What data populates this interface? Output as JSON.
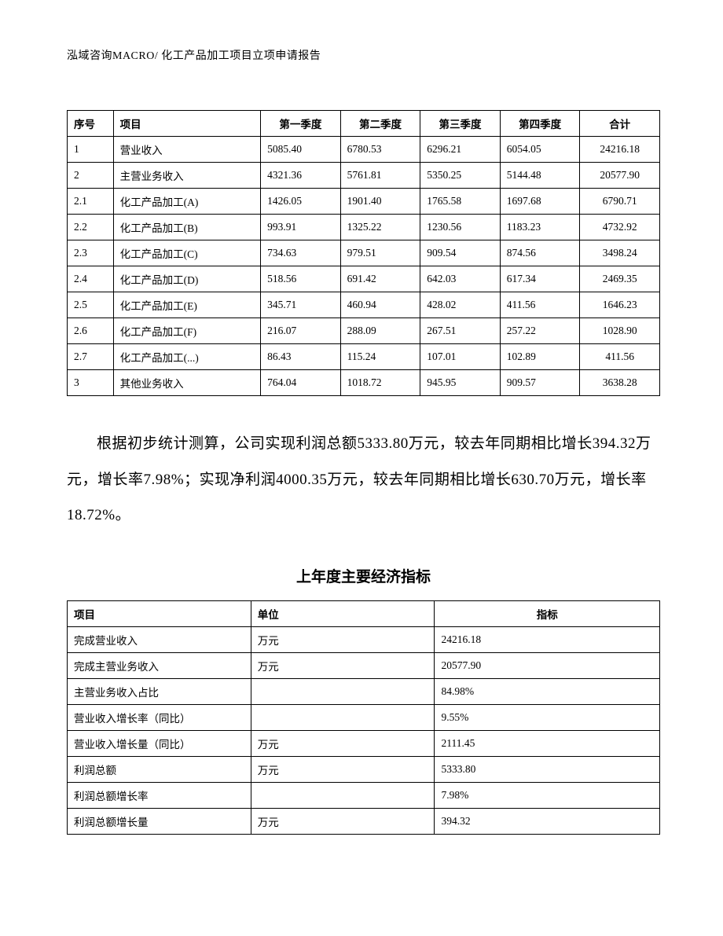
{
  "header": "泓域咨询MACRO/    化工产品加工项目立项申请报告",
  "table1": {
    "headers": [
      "序号",
      "项目",
      "第一季度",
      "第二季度",
      "第三季度",
      "第四季度",
      "合计"
    ],
    "rows": [
      [
        "1",
        "营业收入",
        "5085.40",
        "6780.53",
        "6296.21",
        "6054.05",
        "24216.18"
      ],
      [
        "2",
        "主营业务收入",
        "4321.36",
        "5761.81",
        "5350.25",
        "5144.48",
        "20577.90"
      ],
      [
        "2.1",
        "化工产品加工(A)",
        "1426.05",
        "1901.40",
        "1765.58",
        "1697.68",
        "6790.71"
      ],
      [
        "2.2",
        "化工产品加工(B)",
        "993.91",
        "1325.22",
        "1230.56",
        "1183.23",
        "4732.92"
      ],
      [
        "2.3",
        "化工产品加工(C)",
        "734.63",
        "979.51",
        "909.54",
        "874.56",
        "3498.24"
      ],
      [
        "2.4",
        "化工产品加工(D)",
        "518.56",
        "691.42",
        "642.03",
        "617.34",
        "2469.35"
      ],
      [
        "2.5",
        "化工产品加工(E)",
        "345.71",
        "460.94",
        "428.02",
        "411.56",
        "1646.23"
      ],
      [
        "2.6",
        "化工产品加工(F)",
        "216.07",
        "288.09",
        "267.51",
        "257.22",
        "1028.90"
      ],
      [
        "2.7",
        "化工产品加工(...)",
        "86.43",
        "115.24",
        "107.01",
        "102.89",
        "411.56"
      ],
      [
        "3",
        "其他业务收入",
        "764.04",
        "1018.72",
        "945.95",
        "909.57",
        "3638.28"
      ]
    ]
  },
  "paragraph": "根据初步统计测算，公司实现利润总额5333.80万元，较去年同期相比增长394.32万元，增长率7.98%；实现净利润4000.35万元，较去年同期相比增长630.70万元，增长率18.72%。",
  "subtitle": "上年度主要经济指标",
  "table2": {
    "headers": [
      "项目",
      "单位",
      "指标"
    ],
    "rows": [
      [
        "完成营业收入",
        "万元",
        "24216.18"
      ],
      [
        "完成主营业务收入",
        "万元",
        "20577.90"
      ],
      [
        "主营业务收入占比",
        "",
        "84.98%"
      ],
      [
        "营业收入增长率（同比）",
        "",
        "9.55%"
      ],
      [
        "营业收入增长量（同比）",
        "万元",
        "2111.45"
      ],
      [
        "利润总额",
        "万元",
        "5333.80"
      ],
      [
        "利润总额增长率",
        "",
        "7.98%"
      ],
      [
        "利润总额增长量",
        "万元",
        "394.32"
      ]
    ]
  }
}
